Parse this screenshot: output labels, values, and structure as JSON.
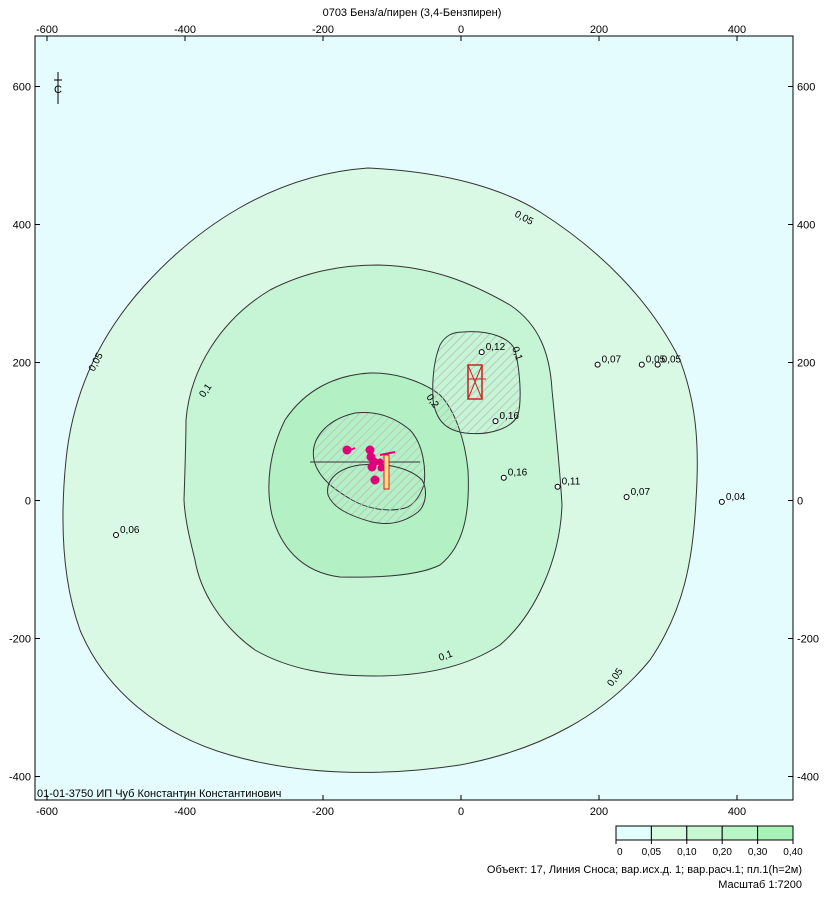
{
  "title": "0703 Бенз/а/пирен (3,4-Бензпирен)",
  "axes": {
    "x_ticks": [
      "-600",
      "-400",
      "-200",
      "0",
      "200",
      "400"
    ],
    "y_ticks": [
      "600",
      "400",
      "200",
      "0",
      "-200",
      "-400"
    ]
  },
  "map": {
    "x_range": [
      -610,
      480
    ],
    "y_range": [
      -430,
      660
    ],
    "contours": [
      {
        "level": "0,05",
        "labels": [
          "0,05",
          "0,05",
          "0,05"
        ]
      },
      {
        "level": "0,1",
        "labels": [
          "0,1",
          "0,1"
        ]
      },
      {
        "level": "0,2",
        "labels": [
          "0,2"
        ]
      },
      {
        "level": "0,1",
        "labels": [
          "0,1"
        ]
      }
    ],
    "points": [
      {
        "x": 30,
        "y": 215,
        "label": "0,12"
      },
      {
        "x": 50,
        "y": 115,
        "label": "0,16"
      },
      {
        "x": 62,
        "y": 33,
        "label": "0,16"
      },
      {
        "x": 140,
        "y": 20,
        "label": "0,11"
      },
      {
        "x": 198,
        "y": 197,
        "label": "0,07"
      },
      {
        "x": 262,
        "y": 197,
        "label": "0,05"
      },
      {
        "x": 285,
        "y": 197,
        "label": "0,05"
      },
      {
        "x": 240,
        "y": 5,
        "label": "0,07"
      },
      {
        "x": 378,
        "y": -2,
        "label": "0,04"
      },
      {
        "x": -500,
        "y": -50,
        "label": "0,06"
      }
    ],
    "compass_label": "С",
    "organization": "01-01-3750 ИП Чуб Константин Константинович"
  },
  "legend": {
    "labels": [
      "0",
      "0,05",
      "0,10",
      "0,20",
      "0,30",
      "0,40"
    ],
    "colors": [
      "#e0fffd",
      "#d6fbe0",
      "#c7f8d2",
      "#b7f5c4",
      "#a7f2b6"
    ]
  },
  "footer": {
    "object_line": "Объект: 17, Линия Сноса; вар.исх.д. 1; вар.расч.1; пл.1(h=2м)",
    "scale_line": "Масштаб 1:7200"
  },
  "colors": {
    "background": "#e4fcfe",
    "zone1": "#d9f9e4",
    "zone2": "#c5f5d5",
    "zone3": "#b3f1c5",
    "source": "#e0007a",
    "building": "#cc2222"
  }
}
